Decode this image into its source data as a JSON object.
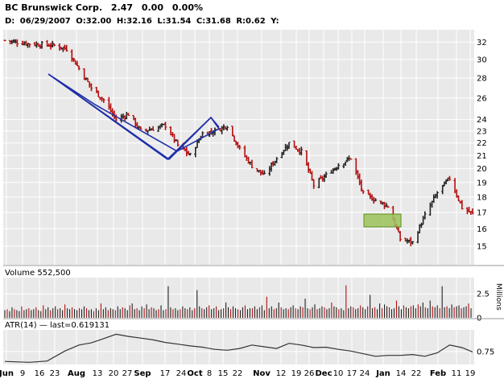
{
  "header": {
    "name": "BC Brunswick Corp.",
    "last": "2.47",
    "change": "0.00",
    "change_pct": "0.00%",
    "detail_prefix": "D:",
    "date": "06/29/2007",
    "open_label": "O:",
    "open": "32.00",
    "high_label": "H:",
    "high": "32.16",
    "low_label": "L:",
    "low": "31.54",
    "close_label": "C:",
    "close": "31.68",
    "range_label": "R:",
    "range": "0.62",
    "yield_label": "Y:"
  },
  "volume_panel": {
    "label": "Volume 552,500",
    "unit_label": "Millions"
  },
  "atr_panel": {
    "label": "ATR(14) — last=0.619131"
  },
  "colors": {
    "background": "#ffffff",
    "plot_background": "#e9e9e9",
    "grid": "#ffffff",
    "up_bar": "#222222",
    "down_bar": "#b40e0e",
    "trend_channel": "#1f2fa8",
    "highlight_fill": "#9cc25a",
    "highlight_stroke": "#5f8f1e",
    "atr_line": "#333333"
  },
  "chart_data": [
    {
      "type": "line",
      "panel": "price",
      "series_style": "OHLC bars",
      "scale": "log",
      "ylim": [
        14,
        33.5
      ],
      "yticks": [
        "32",
        "30",
        "28",
        "26",
        "24",
        "23",
        "22",
        "21",
        "20",
        "19",
        "18",
        "17",
        "16",
        "15"
      ],
      "x_tick_labels": [
        "Jun",
        "9",
        "16",
        "23",
        "Aug",
        "13",
        "20",
        "27",
        "Sep",
        "17",
        "24",
        "Oct",
        "8",
        "15",
        "22",
        "Nov",
        "12",
        "19",
        "26",
        "Dec",
        "10",
        "17",
        "24",
        "Jan",
        "14",
        "22",
        "Feb",
        "11",
        "19"
      ],
      "x_range": [
        "2007-06-01",
        "2008-02-21"
      ],
      "series": [
        {
          "x": [
            "2007-06-01",
            "2007-06-15",
            "2007-06-29",
            "2007-07-06",
            "2007-07-13",
            "2007-07-20",
            "2007-07-27",
            "2007-08-03",
            "2007-08-10",
            "2007-08-17",
            "2007-08-24",
            "2007-08-31",
            "2007-09-07",
            "2007-09-14",
            "2007-09-21",
            "2007-09-28",
            "2007-10-05",
            "2007-10-12",
            "2007-10-19",
            "2007-10-26",
            "2007-11-02",
            "2007-11-09",
            "2007-11-16",
            "2007-11-23",
            "2007-11-30",
            "2007-12-07",
            "2007-12-14",
            "2007-12-21",
            "2007-12-28",
            "2008-01-04",
            "2008-01-11",
            "2008-01-18",
            "2008-01-25",
            "2008-02-01",
            "2008-02-08",
            "2008-02-15",
            "2008-02-21"
          ],
          "y": [
            32.2,
            31.8,
            31.6,
            31.2,
            29.0,
            27.0,
            25.8,
            24.0,
            24.5,
            23.0,
            23.2,
            23.5,
            21.8,
            21.0,
            22.8,
            23.0,
            23.5,
            21.5,
            20.2,
            19.5,
            20.8,
            22.0,
            21.3,
            18.8,
            19.5,
            20.3,
            20.8,
            18.2,
            17.8,
            17.4,
            15.4,
            15.2,
            16.8,
            18.3,
            19.3,
            17.3,
            16.9
          ]
        }
      ],
      "annotations": [
        {
          "kind": "channel",
          "color": "blue"
        },
        {
          "kind": "channel",
          "color": "blue"
        },
        {
          "kind": "box",
          "color": "green"
        }
      ]
    },
    {
      "type": "bar",
      "panel": "volume",
      "ylim": [
        0,
        4.2
      ],
      "yticks": [
        "2.5",
        "0"
      ],
      "ylabel": "Millions",
      "series": [
        {
          "values": [
            0.8,
            0.9,
            0.7,
            1.1,
            0.9,
            0.8,
            0.7,
            1.2,
            0.8,
            0.9,
            1.0,
            0.8,
            0.9,
            1.1,
            0.8,
            0.7,
            1.3,
            0.9,
            1.1,
            0.8,
            1.0,
            1.2,
            0.9,
            1.0,
            0.8,
            1.4,
            1.0,
            0.9,
            1.1,
            0.9,
            0.8,
            1.0,
            0.9,
            1.2,
            1.0,
            0.8,
            0.9,
            0.7,
            1.0,
            0.8,
            1.5,
            0.9,
            1.1,
            0.8,
            1.0,
            0.9,
            0.8,
            1.2,
            0.9,
            1.1,
            1.0,
            0.8,
            1.3,
            1.5,
            0.9,
            1.0,
            0.8,
            1.2,
            1.0,
            1.4,
            0.9,
            1.1,
            1.0,
            0.8,
            0.9,
            1.3,
            0.8,
            0.9,
            3.3,
            1.1,
            0.9,
            1.0,
            0.8,
            0.9,
            1.2,
            1.0,
            0.9,
            1.1,
            0.8,
            1.0,
            2.9,
            1.2,
            1.0,
            0.9,
            1.1,
            1.3,
            0.9,
            1.0,
            1.2,
            0.8,
            0.9,
            1.0,
            1.6,
            1.1,
            0.9,
            1.2,
            1.0,
            0.9,
            0.8,
            1.1,
            1.3,
            0.9,
            1.0,
            1.0,
            1.2,
            0.9,
            1.1,
            1.3,
            0.8,
            2.2,
            1.0,
            1.2,
            0.9,
            1.0,
            1.6,
            1.1,
            0.9,
            1.0,
            0.9,
            1.1,
            1.3,
            1.0,
            0.9,
            1.2,
            1.1,
            2.0,
            1.0,
            0.9,
            1.1,
            1.4,
            0.9,
            1.0,
            1.2,
            1.1,
            0.9,
            1.0,
            1.6,
            1.2,
            1.1,
            0.9,
            1.0,
            0.8,
            3.4,
            1.0,
            1.2,
            1.1,
            0.9,
            1.0,
            1.3,
            1.1,
            0.9,
            1.2,
            2.4,
            1.0,
            1.1,
            0.9,
            1.5,
            1.0,
            1.4,
            1.2,
            1.1,
            0.9,
            1.0,
            1.8,
            1.2,
            0.9,
            1.3,
            1.1,
            1.0,
            1.2,
            1.3,
            1.0,
            1.4,
            1.2,
            1.6,
            1.1,
            1.0,
            1.8,
            1.2,
            1.1,
            1.3,
            1.0,
            3.3,
            1.1,
            1.2,
            1.0,
            1.4,
            1.1,
            1.2,
            1.3,
            1.0,
            1.1,
            1.2,
            1.5,
            1.0
          ]
        }
      ]
    },
    {
      "type": "line",
      "panel": "atr",
      "ylim": [
        0.45,
        1.25
      ],
      "yticks": [
        "0.75"
      ],
      "series": [
        {
          "x": [
            "2007-06-01",
            "2007-06-15",
            "2007-06-25",
            "2007-07-05",
            "2007-07-13",
            "2007-07-20",
            "2007-07-27",
            "2007-08-03",
            "2007-08-10",
            "2007-08-17",
            "2007-08-24",
            "2007-08-31",
            "2007-09-07",
            "2007-09-14",
            "2007-09-21",
            "2007-09-28",
            "2007-10-05",
            "2007-10-12",
            "2007-10-19",
            "2007-10-26",
            "2007-11-02",
            "2007-11-09",
            "2007-11-16",
            "2007-11-23",
            "2007-11-30",
            "2007-12-07",
            "2007-12-14",
            "2007-12-21",
            "2007-12-28",
            "2008-01-04",
            "2008-01-11",
            "2008-01-18",
            "2008-01-25",
            "2008-02-01",
            "2008-02-08",
            "2008-02-15",
            "2008-02-21"
          ],
          "y": [
            0.52,
            0.5,
            0.53,
            0.76,
            0.9,
            0.95,
            1.05,
            1.15,
            1.1,
            1.06,
            1.02,
            0.96,
            0.92,
            0.88,
            0.85,
            0.8,
            0.78,
            0.82,
            0.9,
            0.86,
            0.82,
            0.94,
            0.9,
            0.84,
            0.85,
            0.8,
            0.76,
            0.7,
            0.64,
            0.66,
            0.66,
            0.68,
            0.64,
            0.72,
            0.9,
            0.84,
            0.74
          ]
        }
      ]
    }
  ]
}
